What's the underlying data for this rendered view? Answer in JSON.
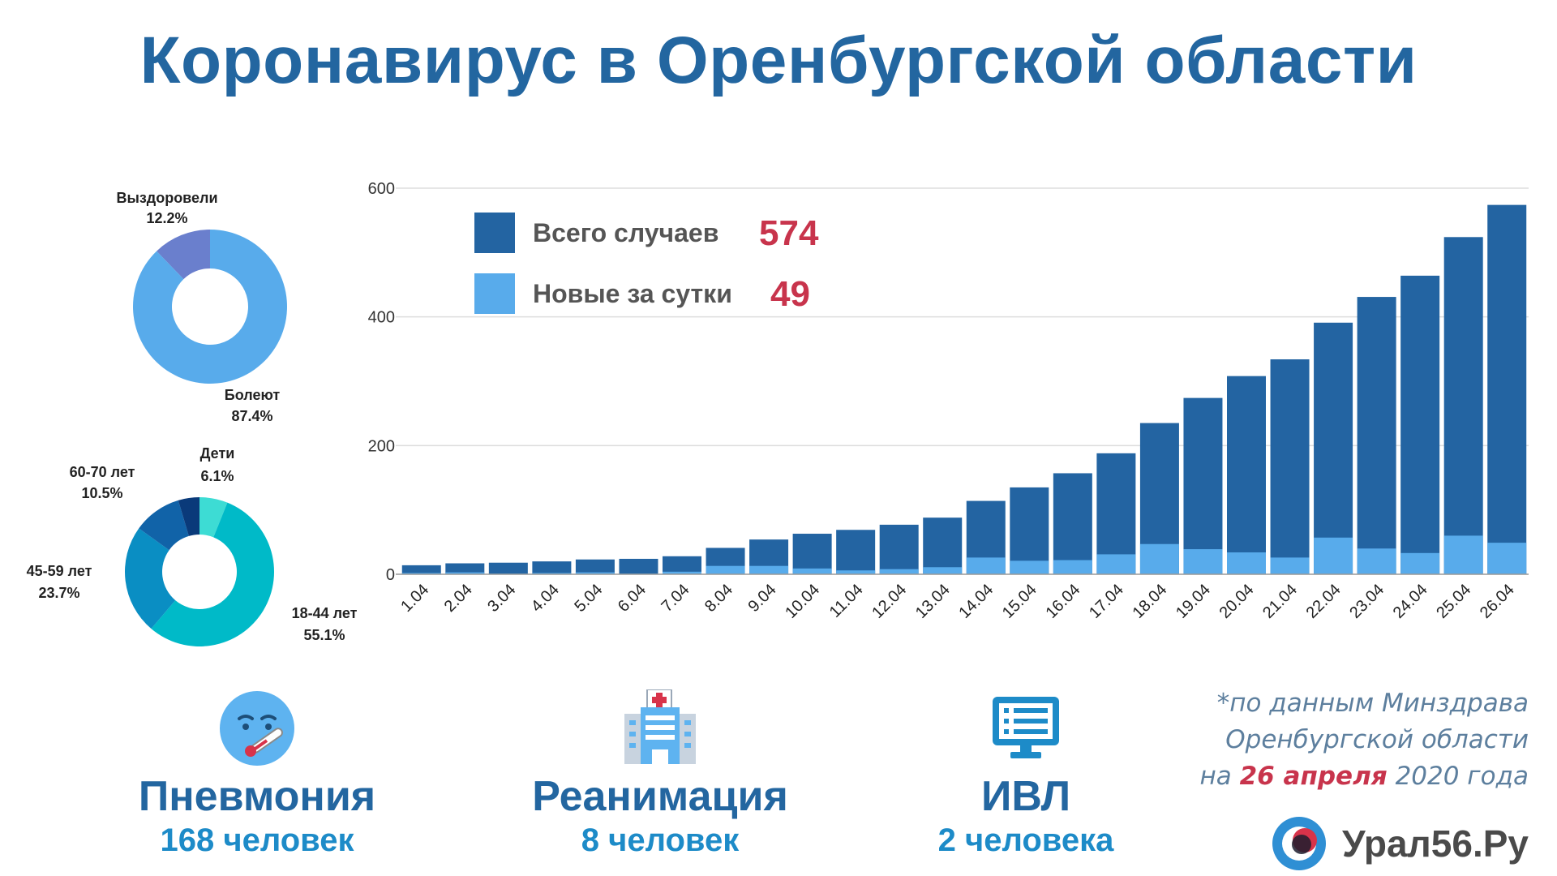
{
  "header": {
    "title": "Коронавирус в Оренбургской области"
  },
  "chart_data": [
    {
      "type": "bar",
      "categories": [
        "1.04",
        "2.04",
        "3.04",
        "4.04",
        "5.04",
        "6.04",
        "7.04",
        "8.04",
        "9.04",
        "10.04",
        "11.04",
        "12.04",
        "13.04",
        "14.04",
        "15.04",
        "16.04",
        "17.04",
        "18.04",
        "19.04",
        "20.04",
        "21.04",
        "22.04",
        "23.04",
        "24.04",
        "25.04",
        "26.04"
      ],
      "series": [
        {
          "name": "Всего случаев",
          "color": "#2364a2",
          "values": [
            14,
            17,
            18,
            20,
            23,
            24,
            28,
            41,
            54,
            63,
            69,
            77,
            88,
            114,
            135,
            157,
            188,
            235,
            274,
            308,
            334,
            391,
            431,
            464,
            524,
            574
          ]
        },
        {
          "name": "Новые за сутки",
          "color": "#58abeb",
          "values": [
            2,
            3,
            1,
            2,
            3,
            1,
            4,
            13,
            13,
            9,
            6,
            8,
            11,
            26,
            21,
            22,
            31,
            47,
            39,
            34,
            26,
            57,
            40,
            33,
            60,
            49
          ]
        }
      ],
      "legend_values": {
        "total": "574",
        "new": "49"
      },
      "yticks": [
        "0",
        "200",
        "400",
        "600"
      ],
      "ylim": [
        0,
        600
      ],
      "grid": true
    },
    {
      "type": "pie",
      "labels": [
        "Выздоровели",
        "Болеют"
      ],
      "percent_labels": [
        "12.2%",
        "87.4%"
      ],
      "values": [
        12.2,
        87.4
      ],
      "colors": [
        "#6a7fcd",
        "#58abeb"
      ]
    },
    {
      "type": "pie",
      "labels": [
        "Дети",
        "18-44 лет",
        "45-59 лет",
        "60-70 лет"
      ],
      "percent_labels": [
        "6.1%",
        "55.1%",
        "23.7%",
        "10.5%"
      ],
      "values": [
        6.1,
        55.1,
        23.7,
        10.5
      ],
      "colors": [
        "#3ddcd4",
        "#00bac8",
        "#0a8ec3",
        "#1163a8",
        "#0a3a7a"
      ]
    }
  ],
  "stats": [
    {
      "name": "Пневмония",
      "value": "168 человек",
      "icon": "thermometer-face-icon"
    },
    {
      "name": "Реанимация",
      "value": "8 человек",
      "icon": "hospital-icon"
    },
    {
      "name": "ИВЛ",
      "value": "2 человека",
      "icon": "monitor-icon"
    }
  ],
  "source": {
    "line1": "*по данным Минздрава",
    "line2": "Оренбургской области",
    "line3_pre": "на",
    "line3_date": "26 апреля",
    "line3_post": "2020 года"
  },
  "brand": {
    "name": "Урал56.Ру"
  },
  "colors": {
    "title": "#2366a0",
    "highlight": "#c8344c",
    "stat_value": "#1d8bc8"
  }
}
